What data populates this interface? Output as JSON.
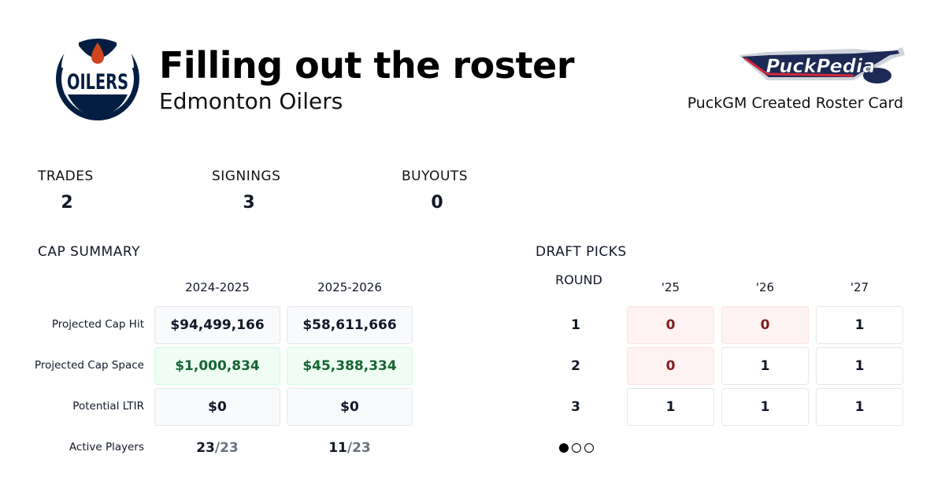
{
  "header": {
    "title": "Filling out the roster",
    "team": "Edmonton Oilers",
    "team_logo_text": "OILERS",
    "brand_logo_text": "PuckPedia",
    "caption": "PuckGM Created Roster Card"
  },
  "stats": [
    {
      "label": "TRADES",
      "value": "2"
    },
    {
      "label": "SIGNINGS",
      "value": "3"
    },
    {
      "label": "BUYOUTS",
      "value": "0"
    }
  ],
  "cap_summary": {
    "title": "CAP SUMMARY",
    "seasons": [
      "2024-2025",
      "2025-2026"
    ],
    "rows": [
      {
        "label": "Projected Cap Hit",
        "values": [
          "$94,499,166",
          "$58,611,666"
        ]
      },
      {
        "label": "Projected Cap Space",
        "values": [
          "$1,000,834",
          "$45,388,334"
        ]
      },
      {
        "label": "Potential LTIR",
        "values": [
          "$0",
          "$0"
        ]
      }
    ],
    "active_players": {
      "label": "Active Players",
      "values": [
        {
          "count": "23",
          "max": "/23"
        },
        {
          "count": "11",
          "max": "/23"
        }
      ]
    }
  },
  "draft_picks": {
    "title": "DRAFT PICKS",
    "round_label": "ROUND",
    "years": [
      "'25",
      "'26",
      "'27"
    ],
    "rounds": [
      {
        "round": "1",
        "picks": [
          "0",
          "0",
          "1"
        ]
      },
      {
        "round": "2",
        "picks": [
          "0",
          "1",
          "1"
        ]
      },
      {
        "round": "3",
        "picks": [
          "1",
          "1",
          "1"
        ]
      }
    ],
    "pagination": {
      "pages": 3,
      "active": 1
    }
  },
  "colors": {
    "oilers_navy": "#041e42",
    "oilers_orange": "#cf4520",
    "positive": "#166534",
    "negative": "#7f1d1d"
  }
}
